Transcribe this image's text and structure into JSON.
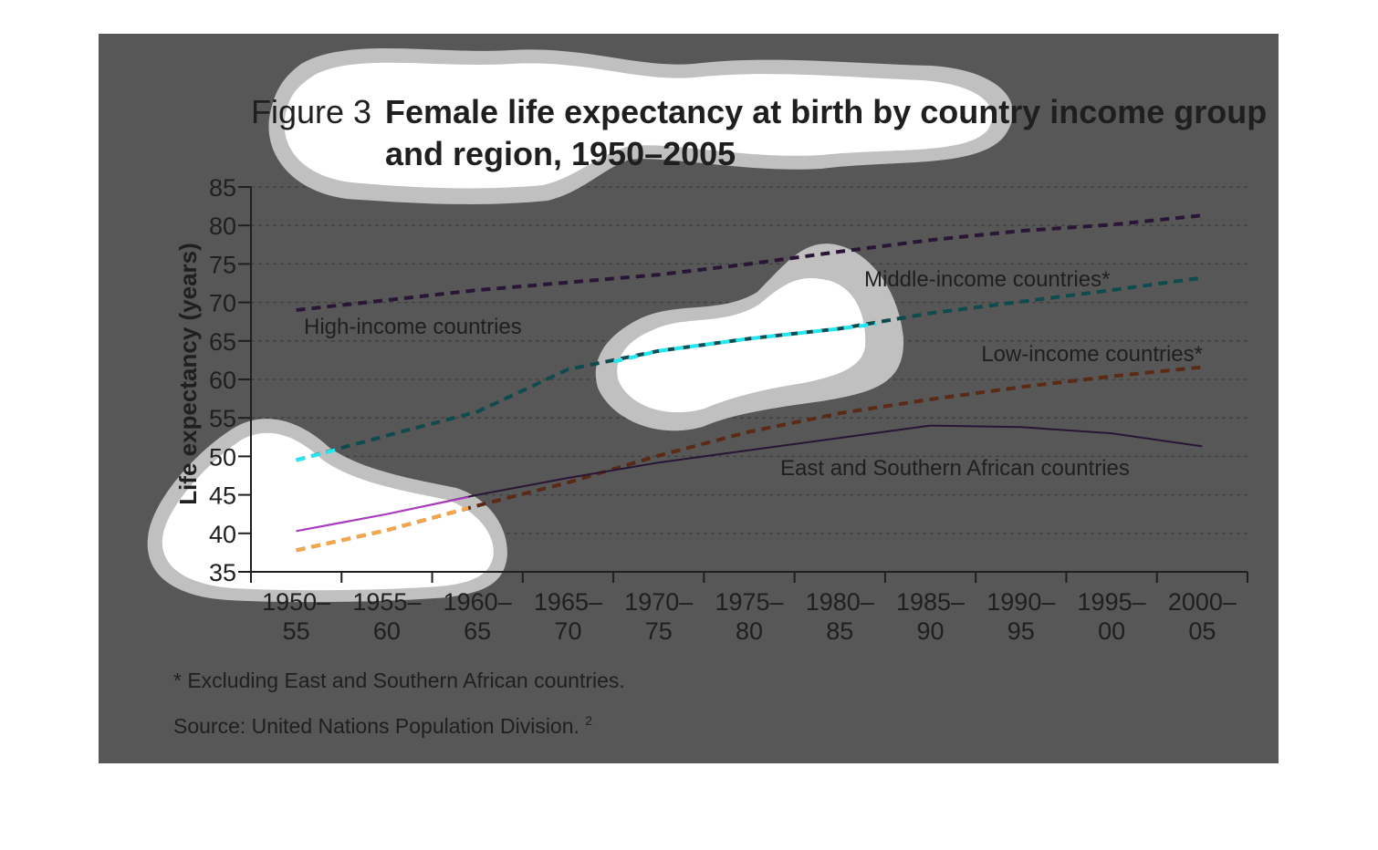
{
  "figure": {
    "number_label": "Figure 3",
    "title_line1": "Female life expectancy at birth by country income group",
    "title_line2": "and region, 1950–2005"
  },
  "chart_data": {
    "type": "line",
    "title": "Female life expectancy at birth by country income group and region, 1950–2005",
    "ylabel": "Life expectancy (years)",
    "xlabel": "",
    "ylim": [
      35,
      85
    ],
    "yticks": [
      85,
      80,
      75,
      70,
      65,
      60,
      55,
      50,
      45,
      40,
      35
    ],
    "categories": [
      [
        "1950–",
        "55"
      ],
      [
        "1955–",
        "60"
      ],
      [
        "1960–",
        "65"
      ],
      [
        "1965–",
        "70"
      ],
      [
        "1970–",
        "75"
      ],
      [
        "1975–",
        "80"
      ],
      [
        "1980–",
        "85"
      ],
      [
        "1985–",
        "90"
      ],
      [
        "1990–",
        "95"
      ],
      [
        "1995–",
        "00"
      ],
      [
        "2000–",
        "05"
      ]
    ],
    "grid": true,
    "series": [
      {
        "name": "High-income countries",
        "style": "dashed",
        "color": "#2a1536",
        "values": [
          69,
          70.3,
          71.6,
          72.6,
          73.6,
          75,
          76.6,
          78.1,
          79.3,
          80.1,
          81.3
        ]
      },
      {
        "name": "Middle-income countries*",
        "style": "dashed",
        "color": "#0f4a4f",
        "values": [
          49.5,
          52.7,
          55.8,
          61.3,
          63.7,
          65.3,
          66.6,
          68.6,
          70.1,
          71.6,
          73.2
        ]
      },
      {
        "name": "Low-income countries*",
        "style": "dashed",
        "color": "#5a2a15",
        "values": [
          37.8,
          40.4,
          43.6,
          46.6,
          50.1,
          53.2,
          55.6,
          57.4,
          59,
          60.4,
          61.6
        ]
      },
      {
        "name": "East and Southern African countries",
        "style": "solid",
        "color": "#2a1536",
        "values": [
          40.3,
          42.5,
          45,
          47.2,
          49.2,
          50.8,
          52.4,
          54,
          53.8,
          53,
          51.3
        ]
      }
    ],
    "annotations": [
      "* Excluding East and Southern African countries."
    ]
  },
  "notes": {
    "footnote": "* Excluding East and Southern African countries.",
    "source": "Source: United Nations Population Division.",
    "source_ref": "2"
  },
  "colors": {
    "panel": "#575757",
    "text": "#1f1f1f",
    "grid": "#3f3f3f",
    "blob_fill": "#ffffff",
    "blob_halo": "#c0c0c0",
    "highlight_middle": "#22e6f0",
    "highlight_low": "#f3a64a",
    "highlight_east_south": "#b13ac8"
  }
}
